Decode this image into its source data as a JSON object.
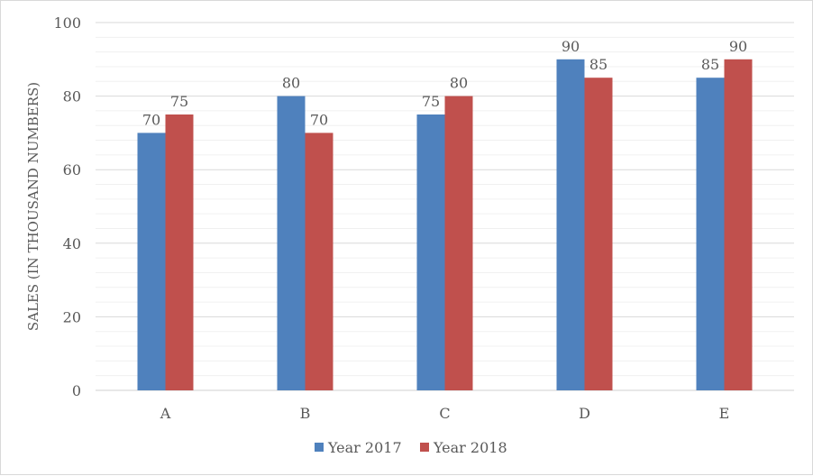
{
  "chart_data": {
    "type": "bar",
    "title": "",
    "xlabel": "",
    "ylabel": "SALES (IN THOUSAND NUMBERS)",
    "ylim": [
      0,
      100
    ],
    "yticks": [
      0,
      20,
      40,
      60,
      80,
      100
    ],
    "grid": true,
    "legend_position": "bottom",
    "categories": [
      "A",
      "B",
      "C",
      "D",
      "E"
    ],
    "series": [
      {
        "name": "Year 2017",
        "values": [
          70,
          80,
          75,
          90,
          85
        ],
        "color": "#4F81BD"
      },
      {
        "name": "Year 2018",
        "values": [
          75,
          70,
          80,
          85,
          90
        ],
        "color": "#C0504D"
      }
    ]
  }
}
